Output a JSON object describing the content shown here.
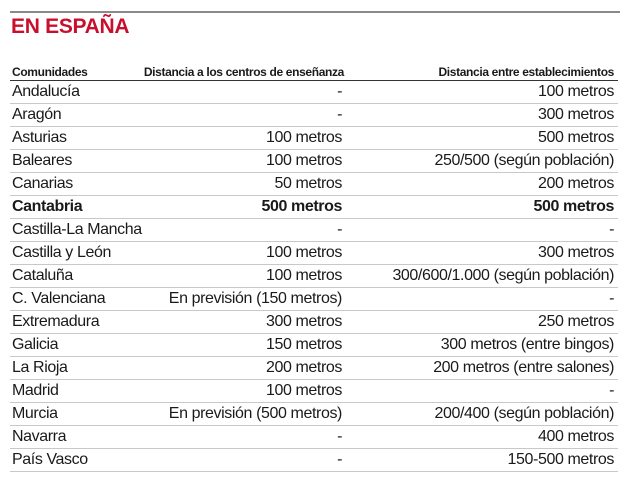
{
  "title": "EN ESPAÑA",
  "headers": [
    "Comunidades",
    "Distancia a los centros de enseñanza",
    "Distancia entre establecimientos"
  ],
  "rows": [
    {
      "name": "Andalucía",
      "centros": "-",
      "establecimientos": "100 metros"
    },
    {
      "name": "Aragón",
      "centros": "-",
      "establecimientos": "300 metros"
    },
    {
      "name": "Asturias",
      "centros": "100 metros",
      "establecimientos": "500 metros"
    },
    {
      "name": "Baleares",
      "centros": "100 metros",
      "establecimientos": "250/500 (según población)"
    },
    {
      "name": "Canarias",
      "centros": "50 metros",
      "establecimientos": "200 metros"
    },
    {
      "name": "Cantabria",
      "centros": "500 metros",
      "establecimientos": "500 metros",
      "bold": true
    },
    {
      "name": "Castilla-La Mancha",
      "centros": "-",
      "establecimientos": "-"
    },
    {
      "name": "Castilla y León",
      "centros": "100 metros",
      "establecimientos": "300 metros"
    },
    {
      "name": "Cataluña",
      "centros": "100 metros",
      "establecimientos": "300/600/1.000 (según población)"
    },
    {
      "name": "C. Valenciana",
      "centros": "En previsión (150 metros)",
      "establecimientos": "-"
    },
    {
      "name": "Extremadura",
      "centros": "300 metros",
      "establecimientos": "250 metros"
    },
    {
      "name": "Galicia",
      "centros": "150 metros",
      "establecimientos": "300 metros (entre bingos)"
    },
    {
      "name": "La Rioja",
      "centros": "200 metros",
      "establecimientos": "200 metros (entre salones)"
    },
    {
      "name": "Madrid",
      "centros": "100 metros",
      "establecimientos": "-"
    },
    {
      "name": "Murcia",
      "centros": "En previsión (500 metros)",
      "establecimientos": "200/400 (según población)"
    },
    {
      "name": "Navarra",
      "centros": "-",
      "establecimientos": "400 metros"
    },
    {
      "name": "País Vasco",
      "centros": "-",
      "establecimientos": "150-500 metros"
    }
  ],
  "colors": {
    "title": "#c8102e"
  }
}
